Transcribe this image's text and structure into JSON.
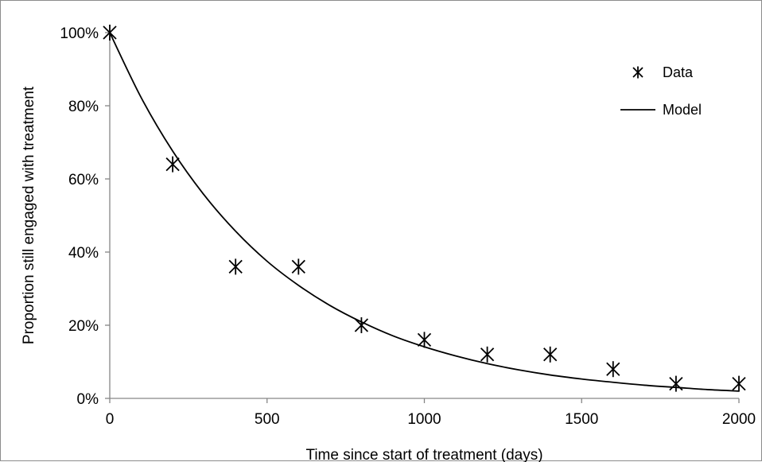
{
  "chart_data": {
    "type": "scatter",
    "title": "",
    "xlabel": "Time since start  of treatment (days)",
    "ylabel": "Proportion still engaged with treatment",
    "xlim": [
      0,
      2000
    ],
    "ylim": [
      0,
      1
    ],
    "x_ticks": [
      0,
      500,
      1000,
      1500,
      2000
    ],
    "x_tick_labels": [
      "0",
      "500",
      "1000",
      "1500",
      "2000"
    ],
    "y_ticks": [
      0,
      0.2,
      0.4,
      0.6,
      0.8,
      1.0
    ],
    "y_tick_labels": [
      "0%",
      "20%",
      "40%",
      "60%",
      "80%",
      "100%"
    ],
    "grid": false,
    "legend_position": "top-right",
    "series": [
      {
        "name": "Data",
        "kind": "markers",
        "marker": "asterisk",
        "x": [
          0,
          200,
          400,
          600,
          800,
          1000,
          1200,
          1400,
          1600,
          1800,
          2000
        ],
        "y": [
          1.0,
          0.64,
          0.36,
          0.36,
          0.2,
          0.16,
          0.12,
          0.12,
          0.08,
          0.04,
          0.04
        ]
      },
      {
        "name": "Model",
        "kind": "line",
        "x": [
          0,
          100,
          200,
          300,
          400,
          500,
          600,
          700,
          800,
          900,
          1000,
          1100,
          1200,
          1300,
          1400,
          1500,
          1600,
          1700,
          1800,
          1900,
          2000
        ],
        "y": [
          1.0,
          0.822,
          0.676,
          0.556,
          0.457,
          0.375,
          0.309,
          0.254,
          0.209,
          0.171,
          0.141,
          0.116,
          0.095,
          0.078,
          0.064,
          0.053,
          0.044,
          0.036,
          0.03,
          0.024,
          0.02
        ]
      }
    ],
    "colors": {
      "axis": "#868686",
      "marker": "#000000",
      "line": "#000000"
    }
  }
}
